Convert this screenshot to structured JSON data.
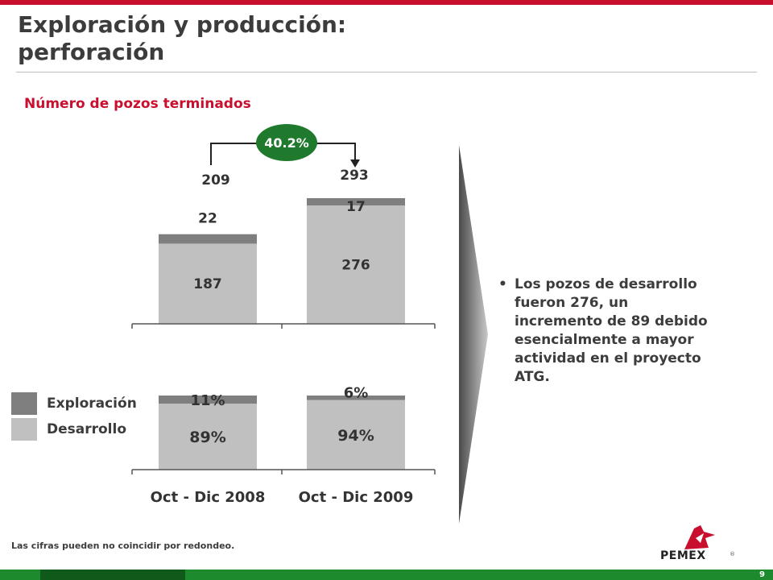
{
  "slide": {
    "title_line1": "Exploración y producción:",
    "title_line2": "perforación",
    "subtitle": "Número de pozos terminados",
    "bullet": "Los pozos de desarrollo fueron 276, un incremento de 89 debido esencialmente a mayor actividad en el proyecto ATG.",
    "footnote": "Las cifras pueden no coincidir por redondeo.",
    "page_number": "9",
    "logo_text": "PEMEX",
    "logo_reg": "®"
  },
  "colors": {
    "accent_red": "#c8102e",
    "exploracion": "#7f7f7f",
    "desarrollo": "#c0c0c0",
    "growth_badge": "#1f7a2e",
    "bar_green": "#1e8a2e"
  },
  "legend": [
    {
      "label": "Exploración",
      "color": "#7f7f7f"
    },
    {
      "label": "Desarrollo",
      "color": "#c0c0c0"
    }
  ],
  "chart_data": [
    {
      "type": "bar",
      "stacked": true,
      "categories": [
        "Oct - Dic 2008",
        "Oct - Dic 2009"
      ],
      "series": [
        {
          "name": "Desarrollo",
          "values": [
            187,
            276
          ],
          "labels": [
            "187",
            "276"
          ]
        },
        {
          "name": "Exploración",
          "values": [
            22,
            17
          ],
          "labels": [
            "22",
            "17"
          ]
        }
      ],
      "totals": [
        209,
        293
      ],
      "total_labels": [
        "209",
        "293"
      ],
      "growth_label": "40.2%",
      "ylim": [
        0,
        293
      ]
    },
    {
      "type": "bar",
      "stacked": true,
      "percent": true,
      "categories": [
        "Oct - Dic 2008",
        "Oct - Dic 2009"
      ],
      "category_labels": [
        "Oct - Dic 2008",
        "Oct - Dic 2009"
      ],
      "series": [
        {
          "name": "Desarrollo",
          "values": [
            89,
            94
          ],
          "labels": [
            "89%",
            "94%"
          ]
        },
        {
          "name": "Exploración",
          "values": [
            11,
            6
          ],
          "labels": [
            "11%",
            "6%"
          ]
        }
      ],
      "ylim": [
        0,
        100
      ]
    }
  ]
}
